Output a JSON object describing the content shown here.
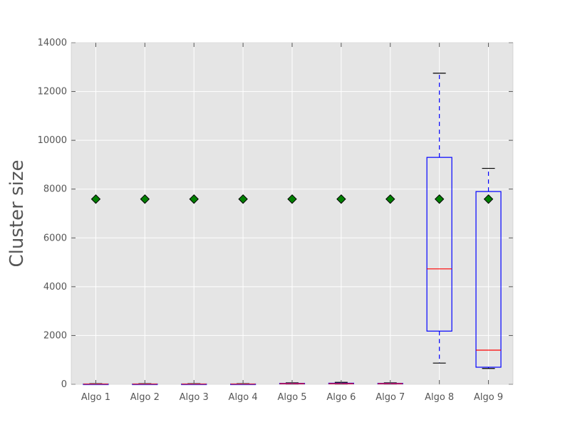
{
  "chart_data": {
    "type": "box",
    "title": "",
    "xlabel": "",
    "ylabel": "Cluster size",
    "ylim": [
      0,
      14000
    ],
    "yticks": [
      0,
      2000,
      4000,
      6000,
      8000,
      10000,
      12000,
      14000
    ],
    "grid": true,
    "categories": [
      "Algo 1",
      "Algo 2",
      "Algo 3",
      "Algo 4",
      "Algo 5",
      "Algo 6",
      "Algo 7",
      "Algo 8",
      "Algo 9"
    ],
    "boxes": [
      {
        "label": "Algo 1",
        "whislo": 2,
        "q1": 5,
        "median": 10,
        "q3": 15,
        "whishi": 25,
        "mean": 7590
      },
      {
        "label": "Algo 2",
        "whislo": 2,
        "q1": 5,
        "median": 10,
        "q3": 15,
        "whishi": 25,
        "mean": 7590
      },
      {
        "label": "Algo 3",
        "whislo": 2,
        "q1": 5,
        "median": 10,
        "q3": 15,
        "whishi": 25,
        "mean": 7590
      },
      {
        "label": "Algo 4",
        "whislo": 2,
        "q1": 5,
        "median": 10,
        "q3": 15,
        "whishi": 25,
        "mean": 7590
      },
      {
        "label": "Algo 5",
        "whislo": 5,
        "q1": 15,
        "median": 25,
        "q3": 40,
        "whishi": 60,
        "mean": 7590
      },
      {
        "label": "Algo 6",
        "whislo": 5,
        "q1": 15,
        "median": 25,
        "q3": 45,
        "whishi": 80,
        "mean": 7590
      },
      {
        "label": "Algo 7",
        "whislo": 5,
        "q1": 15,
        "median": 25,
        "q3": 40,
        "whishi": 60,
        "mean": 7590
      },
      {
        "label": "Algo 8",
        "whislo": 870,
        "q1": 2180,
        "median": 4730,
        "q3": 9300,
        "whishi": 12750,
        "mean": 7590
      },
      {
        "label": "Algo 9",
        "whislo": 650,
        "q1": 700,
        "median": 1400,
        "q3": 7900,
        "whishi": 8850,
        "mean": 7590
      }
    ],
    "colors": {
      "plot_bg": "#e5e5e5",
      "grid": "#ffffff",
      "box": "#0000ff",
      "median": "#ff0000",
      "whisker": "#0000ff",
      "cap": "#000000",
      "mean_marker": "#008000",
      "tick_text": "#555555"
    }
  }
}
